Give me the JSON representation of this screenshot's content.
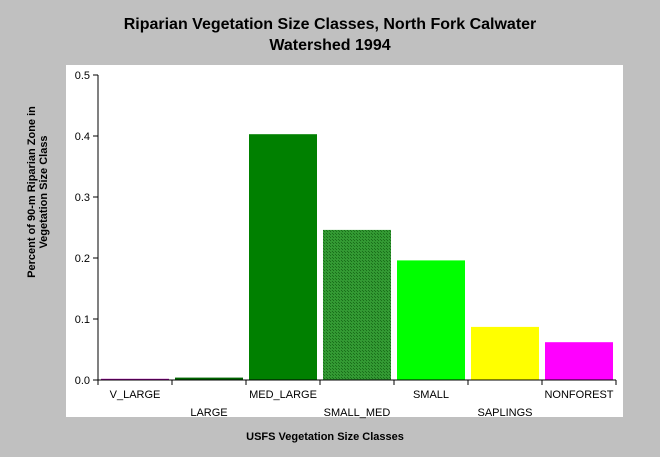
{
  "chart_data": {
    "type": "bar",
    "title_line1": "Riparian Vegetation Size Classes, North Fork Calwater",
    "title_line2": "Watershed 1994",
    "xlabel": "USFS Vegetation Size Classes",
    "ylabel_line1": "Percent of 90-m Riparian Zone in",
    "ylabel_line2": "Vegetation Size Class",
    "categories": [
      "V_LARGE",
      "LARGE",
      "MED_LARGE",
      "SMALL_MED",
      "SMALL",
      "SAPLINGS",
      "NONFOREST"
    ],
    "values": [
      0.002,
      0.004,
      0.403,
      0.246,
      0.196,
      0.087,
      0.062
    ],
    "colors": [
      "#a000a0",
      "#006400",
      "#008000",
      "#339933",
      "#00ff00",
      "#ffff00",
      "#ff00ff"
    ],
    "hatched": [
      false,
      false,
      false,
      true,
      false,
      false,
      false
    ],
    "ylim": [
      0,
      0.5
    ],
    "yticks": [
      "0.0",
      "0.1",
      "0.2",
      "0.3",
      "0.4",
      "0.5"
    ],
    "grid": false,
    "legend": "none"
  }
}
